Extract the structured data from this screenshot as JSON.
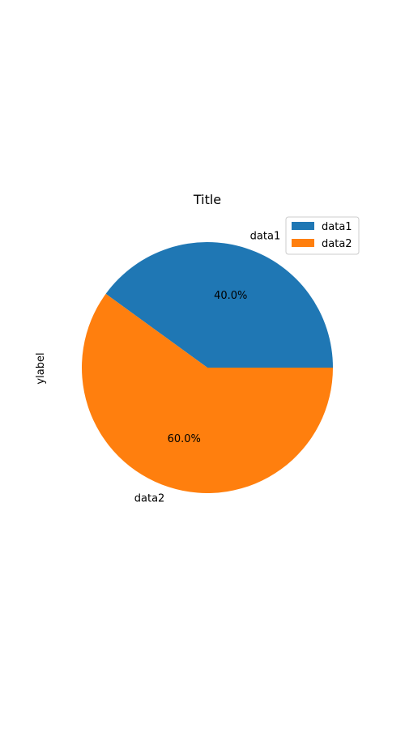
{
  "chart_data": {
    "type": "pie",
    "title": "Title",
    "xlabel": "",
    "ylabel": "ylabel",
    "categories": [
      "data1",
      "data2"
    ],
    "values": [
      40,
      60
    ],
    "percent_labels": [
      "40.0%",
      "60.0%"
    ],
    "colors": [
      "#1f77b4",
      "#ff7f0e"
    ],
    "start_angle_deg": 0,
    "direction": "counterclockwise",
    "legend": {
      "position": "top-right",
      "entries": [
        "data1",
        "data2"
      ]
    },
    "grid": false
  }
}
